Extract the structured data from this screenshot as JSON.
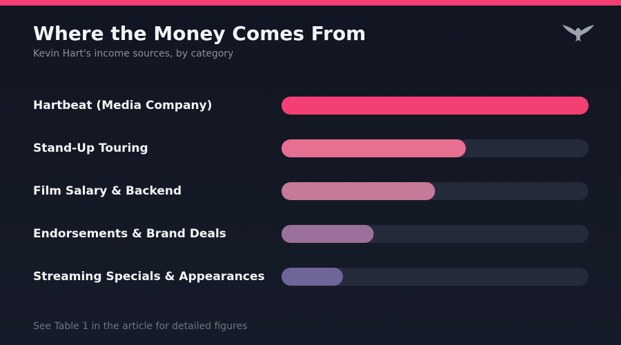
{
  "header": {
    "title": "Where the Money Comes From",
    "subtitle": "Kevin Hart's income sources, by category"
  },
  "logo": {
    "icon": "eagle-icon",
    "color": "#9ca3af"
  },
  "footer": {
    "note": "See Table 1 in the article for detailed figures"
  },
  "colors": {
    "accent": "#f43f74",
    "track": "#252a3a"
  },
  "chart_data": {
    "type": "bar",
    "orientation": "horizontal",
    "title": "Where the Money Comes From",
    "subtitle": "Kevin Hart's income sources, by category",
    "categories": [
      "Hartbeat (Media Company)",
      "Stand-Up Touring",
      "Film Salary & Backend",
      "Endorsements & Brand Deals",
      "Streaming Specials & Appearances"
    ],
    "values": [
      1.0,
      0.6,
      0.5,
      0.3,
      0.2
    ],
    "value_scale": "relative share of largest category (0-1)",
    "bar_colors": [
      "#f43f74",
      "#e86f91",
      "#c47a98",
      "#9b709a",
      "#6e6599"
    ],
    "track_color": "#252a3a",
    "xlim": [
      0,
      1
    ],
    "axis_ticks_shown": false,
    "grid": false,
    "legend": "none"
  }
}
